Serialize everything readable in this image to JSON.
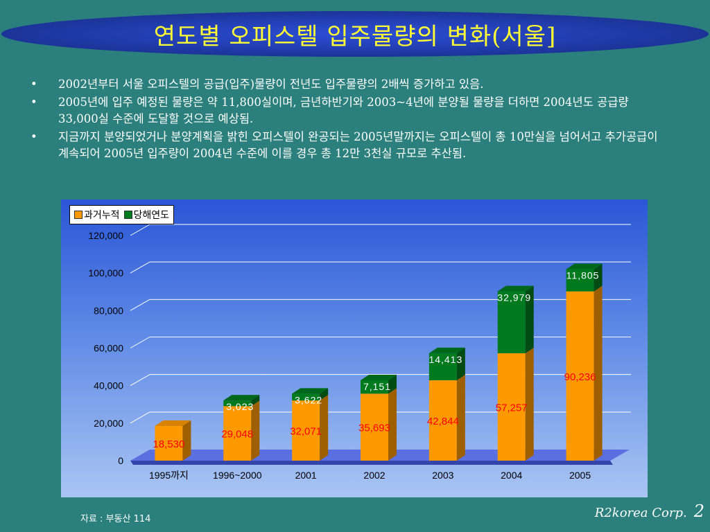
{
  "title": "연도별 오피스텔 입주물량의 변화(서울]",
  "bullets": [
    "2002년부터 서울 오피스텔의 공급(입주)물량이 전년도 입주물량의 2배씩 증가하고 있음.",
    "2005년에 입주 예정된 물량은 약 11,800실이며, 금년하반기와 2003~4년에 분양될 물량을 더하면 2004년도 공급량 33,000실 수준에 도달할 것으로 예상됨.",
    "지금까지 분양되었거나 분양계획을 밝힌 오피스텔이 완공되는 2005년말까지는 오피스텔이 총 10만실을 넘어서고  추가공급이 계속되어 2005년 입주량이 2004년 수준에 이를 경우 총 12만 3천실 규모로 추산됨."
  ],
  "bullet_marker": "•",
  "colors": {
    "past": "#ff9900",
    "current": "#007a1e",
    "past_label": "#ff0000",
    "current_label": "#ffffff"
  },
  "chart_data": {
    "type": "bar",
    "stacked": true,
    "categories": [
      "1995까지",
      "1996~2000",
      "2001",
      "2002",
      "2003",
      "2004",
      "2005"
    ],
    "series": [
      {
        "name": "과거누적",
        "values": [
          18530,
          29048,
          32071,
          35693,
          42844,
          57257,
          90236
        ]
      },
      {
        "name": "당해연도",
        "values": [
          null,
          3023,
          3622,
          7151,
          14413,
          32979,
          11805
        ]
      }
    ],
    "value_labels": {
      "past": [
        "18,530",
        "29,048",
        "32,071",
        "35,693",
        "42,844",
        "57,257",
        "90,236"
      ],
      "current": [
        "",
        "3,023",
        "3,622",
        "7,151",
        "14,413",
        "32,979",
        "11,805"
      ]
    },
    "ylim": [
      0,
      120000
    ],
    "yticks": [
      0,
      20000,
      40000,
      60000,
      80000,
      100000,
      120000
    ],
    "ytick_labels": [
      "0",
      "20,000",
      "40,000",
      "60,000",
      "80,000",
      "100,000",
      "120,000"
    ],
    "grid": true,
    "legend": "top-left"
  },
  "source": "자료 : 부동산 114",
  "footer": {
    "corp": "R2korea Corp.",
    "page": "2"
  }
}
